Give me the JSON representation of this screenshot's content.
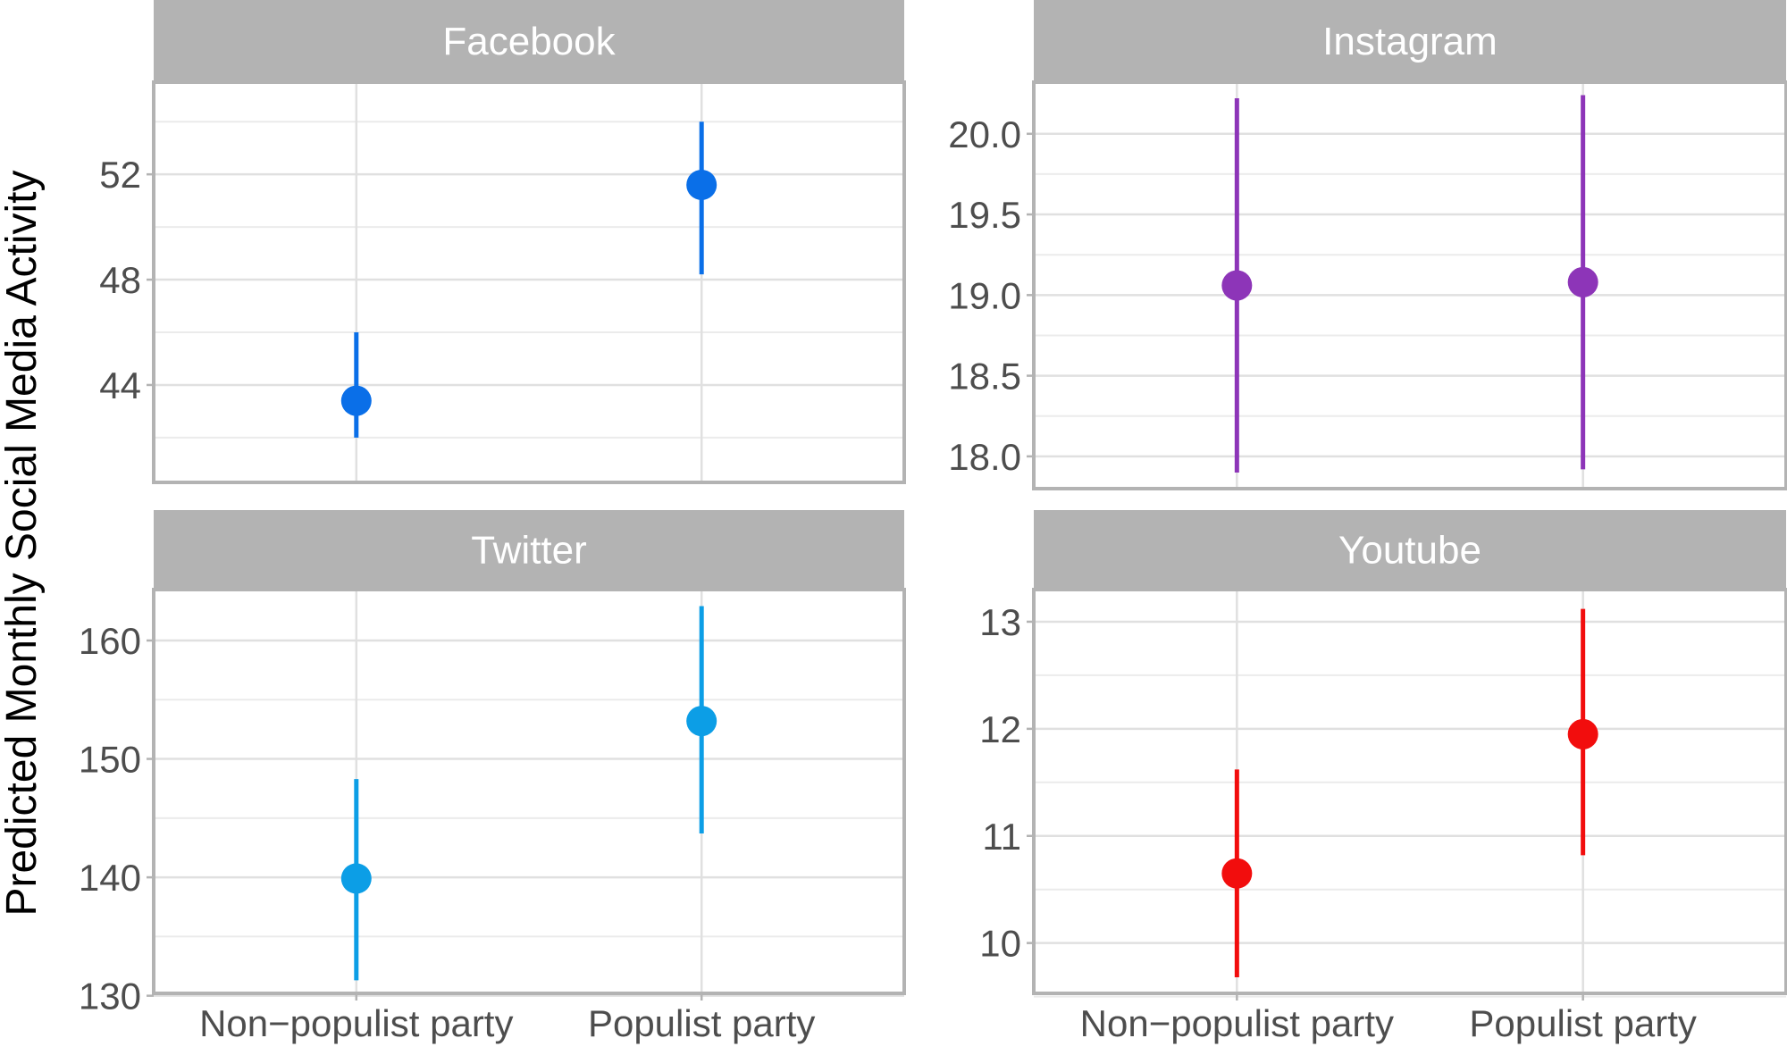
{
  "y_label": "Predicted Monthly Social Media Activity",
  "categories": [
    "Non−populist party",
    "Populist party"
  ],
  "chart_data": [
    {
      "type": "scatter",
      "panel": "Facebook",
      "color": "#0a6fe8",
      "categories": [
        "Non−populist party",
        "Populist party"
      ],
      "estimates": [
        43.4,
        51.6
      ],
      "ci_lower": [
        42.0,
        48.2
      ],
      "ci_upper": [
        46.0,
        54.0
      ],
      "ylim": [
        40.3,
        55.5
      ],
      "yticks": [
        44,
        48,
        52
      ],
      "ytick_labels": [
        "44",
        "48",
        "52"
      ],
      "minor_yticks": [
        42,
        46,
        50,
        54
      ]
    },
    {
      "type": "scatter",
      "panel": "Instagram",
      "color": "#8d35b8",
      "categories": [
        "Non−populist party",
        "Populist party"
      ],
      "estimates": [
        19.06,
        19.08
      ],
      "ci_lower": [
        17.9,
        17.92
      ],
      "ci_upper": [
        20.22,
        20.24
      ],
      "ylim": [
        17.8,
        20.32
      ],
      "yticks": [
        18.0,
        18.5,
        19.0,
        19.5,
        20.0
      ],
      "ytick_labels": [
        "18.0",
        "18.5",
        "19.0",
        "19.5",
        "20.0"
      ],
      "minor_yticks": [
        18.25,
        18.75,
        19.25,
        19.75
      ]
    },
    {
      "type": "scatter",
      "panel": "Twitter",
      "color": "#0c9ee6",
      "categories": [
        "Non−populist party",
        "Populist party"
      ],
      "estimates": [
        139.9,
        153.2
      ],
      "ci_lower": [
        131.3,
        143.7
      ],
      "ci_upper": [
        148.3,
        162.9
      ],
      "ylim": [
        130.2,
        164.3
      ],
      "yticks": [
        130,
        140,
        150,
        160
      ],
      "ytick_labels": [
        "130",
        "140",
        "150",
        "160"
      ],
      "minor_yticks": [
        135,
        145,
        155
      ]
    },
    {
      "type": "scatter",
      "panel": "Youtube",
      "color": "#f20d0d",
      "categories": [
        "Non−populist party",
        "Populist party"
      ],
      "estimates": [
        10.65,
        11.95
      ],
      "ci_lower": [
        9.68,
        10.82
      ],
      "ci_upper": [
        11.62,
        13.12
      ],
      "ylim": [
        9.53,
        13.3
      ],
      "yticks": [
        10,
        11,
        12,
        13
      ],
      "ytick_labels": [
        "10",
        "11",
        "12",
        "13"
      ],
      "minor_yticks": [
        9.5,
        10.5,
        11.5,
        12.5
      ]
    }
  ]
}
